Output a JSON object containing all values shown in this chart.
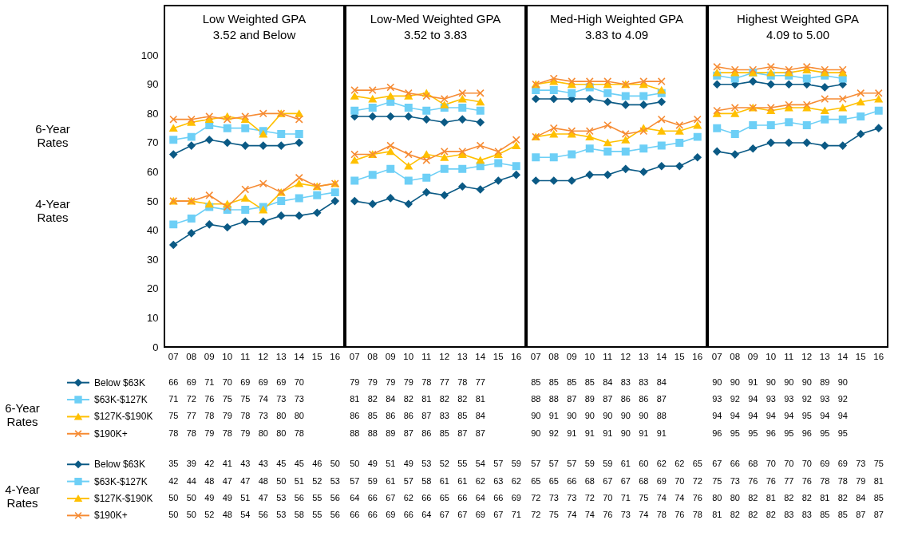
{
  "chart_data": [
    {
      "type": "line",
      "title": "Low Weighted GPA",
      "subtitle": "3.52 and Below",
      "categories": [
        "07",
        "08",
        "09",
        "10",
        "11",
        "12",
        "13",
        "14",
        "15",
        "16"
      ],
      "ylim": [
        0,
        117
      ],
      "yticks": [
        0,
        10,
        20,
        30,
        40,
        50,
        60,
        70,
        80,
        90,
        100
      ],
      "data_labels": true,
      "legend": "bottom",
      "annotations": [
        "6-Year Rates",
        "4-Year Rates",
        "6-Year Rates",
        "4-Year Rates"
      ],
      "series": [
        {
          "name": "Below $63K",
          "color": "#0b5a85",
          "marker": "diamond",
          "values": [
            66,
            69,
            71,
            70,
            69,
            69,
            69,
            70,
            null,
            null
          ]
        },
        {
          "name": "$63K-$127K",
          "color": "#6dcff6",
          "marker": "square",
          "values": [
            71,
            72,
            76,
            75,
            75,
            74,
            73,
            73,
            null,
            null
          ]
        },
        {
          "name": "$127K-$190K",
          "color": "#ffc000",
          "marker": "triangle",
          "values": [
            75,
            77,
            78,
            79,
            78,
            73,
            80,
            80,
            null,
            null
          ]
        },
        {
          "name": "$190K+",
          "color": "#f68b33",
          "marker": "cross",
          "values": [
            78,
            78,
            79,
            78,
            79,
            80,
            80,
            78,
            null,
            null
          ]
        },
        {
          "name": "Below $63K",
          "color": "#0b5a85",
          "marker": "diamond",
          "values": [
            35,
            39,
            42,
            41,
            43,
            43,
            45,
            45,
            46,
            50
          ]
        },
        {
          "name": "$63K-$127K",
          "color": "#6dcff6",
          "marker": "square",
          "values": [
            42,
            44,
            48,
            47,
            47,
            48,
            50,
            51,
            52,
            53
          ]
        },
        {
          "name": "$127K-$190K",
          "color": "#ffc000",
          "marker": "triangle",
          "values": [
            50,
            50,
            49,
            49,
            51,
            47,
            53,
            56,
            55,
            56
          ]
        },
        {
          "name": "$190K+",
          "color": "#f68b33",
          "marker": "cross",
          "values": [
            50,
            50,
            52,
            48,
            54,
            56,
            53,
            58,
            55,
            56
          ]
        }
      ]
    },
    {
      "type": "line",
      "title": "Low-Med Weighted GPA",
      "subtitle": "3.52 to 3.83",
      "categories": [
        "07",
        "08",
        "09",
        "10",
        "11",
        "12",
        "13",
        "14",
        "15",
        "16"
      ],
      "ylim": [
        0,
        117
      ],
      "yticks": [
        0,
        10,
        20,
        30,
        40,
        50,
        60,
        70,
        80,
        90,
        100
      ],
      "data_labels": true,
      "tick_labels": "x",
      "series": [
        {
          "color": "#0b5a85",
          "marker": "diamond",
          "values": [
            79,
            79,
            79,
            79,
            78,
            77,
            78,
            77,
            null,
            null
          ]
        },
        {
          "color": "#6dcff6",
          "marker": "square",
          "values": [
            81,
            82,
            84,
            82,
            81,
            82,
            82,
            81,
            null,
            null
          ]
        },
        {
          "color": "#ffc000",
          "marker": "triangle",
          "values": [
            86,
            85,
            86,
            86,
            87,
            83,
            85,
            84,
            null,
            null
          ]
        },
        {
          "color": "#f68b33",
          "marker": "cross",
          "values": [
            88,
            88,
            89,
            87,
            86,
            85,
            87,
            87,
            null,
            null
          ]
        },
        {
          "color": "#0b5a85",
          "marker": "diamond",
          "values": [
            50,
            49,
            51,
            49,
            53,
            52,
            55,
            54,
            57,
            59
          ]
        },
        {
          "color": "#6dcff6",
          "marker": "square",
          "values": [
            57,
            59,
            61,
            57,
            58,
            61,
            61,
            62,
            63,
            62
          ]
        },
        {
          "color": "#ffc000",
          "marker": "triangle",
          "values": [
            64,
            66,
            67,
            62,
            66,
            65,
            66,
            64,
            66,
            69
          ]
        },
        {
          "color": "#f68b33",
          "marker": "cross",
          "values": [
            66,
            66,
            69,
            66,
            64,
            67,
            67,
            69,
            67,
            71
          ]
        }
      ]
    },
    {
      "type": "line",
      "title": "Med-High Weighted GPA",
      "subtitle": "3.83 to 4.09",
      "categories": [
        "07",
        "08",
        "09",
        "10",
        "11",
        "12",
        "13",
        "14",
        "15",
        "16"
      ],
      "ylim": [
        0,
        117
      ],
      "yticks": [
        0,
        10,
        20,
        30,
        40,
        50,
        60,
        70,
        80,
        90,
        100
      ],
      "data_labels": true,
      "tick_labels": "x",
      "series": [
        {
          "color": "#0b5a85",
          "marker": "diamond",
          "values": [
            85,
            85,
            85,
            85,
            84,
            83,
            83,
            84,
            null,
            null
          ]
        },
        {
          "color": "#6dcff6",
          "marker": "square",
          "values": [
            88,
            88,
            87,
            89,
            87,
            86,
            86,
            87,
            null,
            null
          ]
        },
        {
          "color": "#ffc000",
          "marker": "triangle",
          "values": [
            90,
            91,
            90,
            90,
            90,
            90,
            90,
            88,
            null,
            null
          ]
        },
        {
          "color": "#f68b33",
          "marker": "cross",
          "values": [
            90,
            92,
            91,
            91,
            91,
            90,
            91,
            91,
            null,
            null
          ]
        },
        {
          "color": "#0b5a85",
          "marker": "diamond",
          "values": [
            57,
            57,
            57,
            59,
            59,
            61,
            60,
            62,
            62,
            65
          ]
        },
        {
          "color": "#6dcff6",
          "marker": "square",
          "values": [
            65,
            65,
            66,
            68,
            67,
            67,
            68,
            69,
            70,
            72
          ]
        },
        {
          "color": "#ffc000",
          "marker": "triangle",
          "values": [
            72,
            73,
            73,
            72,
            70,
            71,
            75,
            74,
            74,
            76
          ]
        },
        {
          "color": "#f68b33",
          "marker": "cross",
          "values": [
            72,
            75,
            74,
            74,
            76,
            73,
            74,
            78,
            76,
            78
          ]
        }
      ]
    },
    {
      "type": "line",
      "title": "Highest Weighted GPA",
      "subtitle": "4.09 to 5.00",
      "categories": [
        "07",
        "08",
        "09",
        "10",
        "11",
        "12",
        "13",
        "14",
        "15",
        "16"
      ],
      "ylim": [
        0,
        117
      ],
      "yticks": [
        0,
        10,
        20,
        30,
        40,
        50,
        60,
        70,
        80,
        90,
        100
      ],
      "data_labels": true,
      "tick_labels": "x",
      "series": [
        {
          "color": "#0b5a85",
          "marker": "diamond",
          "values": [
            90,
            90,
            91,
            90,
            90,
            90,
            89,
            90,
            null,
            null
          ]
        },
        {
          "color": "#6dcff6",
          "marker": "square",
          "values": [
            93,
            92,
            94,
            93,
            93,
            92,
            93,
            92,
            null,
            null
          ]
        },
        {
          "color": "#ffc000",
          "marker": "triangle",
          "values": [
            94,
            94,
            94,
            94,
            94,
            95,
            94,
            94,
            null,
            null
          ]
        },
        {
          "color": "#f68b33",
          "marker": "cross",
          "values": [
            96,
            95,
            95,
            96,
            95,
            96,
            95,
            95,
            null,
            null
          ]
        },
        {
          "color": "#0b5a85",
          "marker": "diamond",
          "values": [
            67,
            66,
            68,
            70,
            70,
            70,
            69,
            69,
            73,
            75
          ]
        },
        {
          "color": "#6dcff6",
          "marker": "square",
          "values": [
            75,
            73,
            76,
            76,
            77,
            76,
            78,
            78,
            79,
            81
          ]
        },
        {
          "color": "#ffc000",
          "marker": "triangle",
          "values": [
            80,
            80,
            82,
            81,
            82,
            82,
            81,
            82,
            84,
            85
          ]
        },
        {
          "color": "#f68b33",
          "marker": "cross",
          "values": [
            81,
            82,
            82,
            82,
            83,
            83,
            85,
            85,
            87,
            87
          ]
        }
      ]
    }
  ]
}
